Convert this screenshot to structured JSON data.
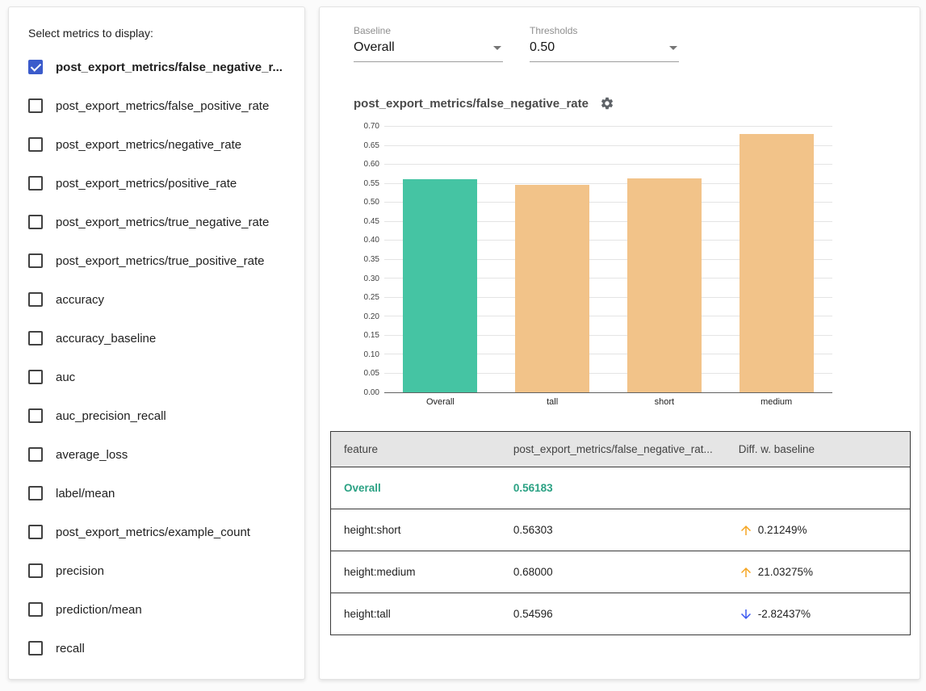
{
  "sidebar": {
    "title": "Select metrics to display:",
    "items": [
      {
        "label": "post_export_metrics/false_negative_r...",
        "checked": true
      },
      {
        "label": "post_export_metrics/false_positive_rate",
        "checked": false
      },
      {
        "label": "post_export_metrics/negative_rate",
        "checked": false
      },
      {
        "label": "post_export_metrics/positive_rate",
        "checked": false
      },
      {
        "label": "post_export_metrics/true_negative_rate",
        "checked": false
      },
      {
        "label": "post_export_metrics/true_positive_rate",
        "checked": false
      },
      {
        "label": "accuracy",
        "checked": false
      },
      {
        "label": "accuracy_baseline",
        "checked": false
      },
      {
        "label": "auc",
        "checked": false
      },
      {
        "label": "auc_precision_recall",
        "checked": false
      },
      {
        "label": "average_loss",
        "checked": false
      },
      {
        "label": "label/mean",
        "checked": false
      },
      {
        "label": "post_export_metrics/example_count",
        "checked": false
      },
      {
        "label": "precision",
        "checked": false
      },
      {
        "label": "prediction/mean",
        "checked": false
      },
      {
        "label": "recall",
        "checked": false
      }
    ]
  },
  "controls": {
    "baseline": {
      "label": "Baseline",
      "value": "Overall"
    },
    "thresholds": {
      "label": "Thresholds",
      "value": "0.50"
    }
  },
  "chart_data": {
    "type": "bar",
    "title": "post_export_metrics/false_negative_rate",
    "categories": [
      "Overall",
      "tall",
      "short",
      "medium"
    ],
    "values": [
      0.56183,
      0.54596,
      0.56303,
      0.68
    ],
    "bar_colors": [
      "#45c4a3",
      "#f2c389",
      "#f2c389",
      "#f2c389"
    ],
    "xlabel": "",
    "ylabel": "",
    "ylim": [
      0,
      0.7
    ],
    "ytick_step": 0.05,
    "grid": true,
    "legend": "none"
  },
  "table": {
    "headers": [
      "feature",
      "post_export_metrics/false_negative_rat...",
      "Diff. w. baseline"
    ],
    "rows": [
      {
        "feature": "Overall",
        "value": "0.56183",
        "diff": "",
        "direction": "",
        "baseline": true
      },
      {
        "feature": "height:short",
        "value": "0.56303",
        "diff": "0.21249%",
        "direction": "up",
        "baseline": false
      },
      {
        "feature": "height:medium",
        "value": "0.68000",
        "diff": "21.03275%",
        "direction": "up",
        "baseline": false
      },
      {
        "feature": "height:tall",
        "value": "0.54596",
        "diff": "-2.82437%",
        "direction": "down",
        "baseline": false
      }
    ]
  },
  "colors": {
    "baseline_bar": "#45c4a3",
    "slice_bar": "#f2c389",
    "baseline_text": "#2aa183",
    "up_arrow": "#f5a623",
    "down_arrow": "#3d5af1",
    "checkbox_checked": "#3b5bcb"
  }
}
